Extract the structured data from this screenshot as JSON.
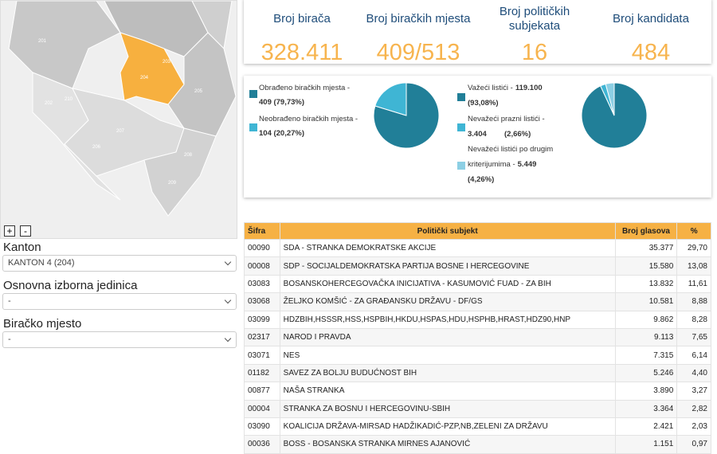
{
  "map": {
    "labels": [
      "201",
      "202",
      "203",
      "204",
      "205",
      "206",
      "207",
      "208",
      "209",
      "210"
    ],
    "zoom_in": "+",
    "zoom_out": "-"
  },
  "filters": [
    {
      "label": "Kanton",
      "selected": "KANTON 4 (204)"
    },
    {
      "label": "Osnovna izborna jedinica",
      "selected": "-"
    },
    {
      "label": "Biračko mjesto",
      "selected": "-"
    }
  ],
  "stats": [
    {
      "title": "Broj birača",
      "value": "328.411"
    },
    {
      "title": "Broj biračkih mjesta",
      "value": "409/513"
    },
    {
      "title": "Broj političkih subjekata",
      "value": "16"
    },
    {
      "title": "Broj kandidata",
      "value": "484"
    }
  ],
  "pie_left": {
    "slices": [
      {
        "label_lines": [
          "Obrađeno biračkih mjesta -"
        ],
        "value_label": "409 (79,73%)",
        "value": 409,
        "color": "#217f98"
      },
      {
        "label_lines": [
          "Neobrađeno biračkih mjesta -"
        ],
        "value_label": "104 (20,27%)",
        "value": 104,
        "color": "#3fb5d4"
      }
    ]
  },
  "pie_right": {
    "slices": [
      {
        "label_lines": [
          "Važeći listići -"
        ],
        "count": "119.100",
        "share": "(93,08%)",
        "value": 119100,
        "color": "#217f98"
      },
      {
        "label_lines": [
          "Nevažeći prazni listići -"
        ],
        "count": "3.404",
        "share": "(2,66%)",
        "value": 3404,
        "color": "#3fb5d4"
      },
      {
        "label_lines": [
          "Nevažeći listići po drugim",
          "kriterijumima -"
        ],
        "count": "5.449",
        "share": "(4,26%)",
        "value": 5449,
        "color": "#8ccfe4"
      }
    ]
  },
  "table": {
    "headers": [
      "Šifra",
      "Politički subjekt",
      "Broj glasova",
      "%"
    ],
    "rows": [
      [
        "00090",
        "SDA - STRANKA DEMOKRATSKE AKCIJE",
        "35.377",
        "29,70"
      ],
      [
        "00008",
        "SDP - SOCIJALDEMOKRATSKA PARTIJA BOSNE I HERCEGOVINE",
        "15.580",
        "13,08"
      ],
      [
        "03083",
        "BOSANSKOHERCEGOVAČKA INICIJATIVA - KASUMOVIĆ FUAD - ZA BIH",
        "13.832",
        "11,61"
      ],
      [
        "03068",
        "ŽELJKO KOMŠIĆ - ZA GRAĐANSKU DRŽAVU - DF/GS",
        "10.581",
        "8,88"
      ],
      [
        "03099",
        "HDZBIH,HSSSR,HSS,HSPBIH,HKDU,HSPAS,HDU,HSPHB,HRAST,HDZ90,HNP",
        "9.862",
        "8,28"
      ],
      [
        "02317",
        "NAROD I PRAVDA",
        "9.113",
        "7,65"
      ],
      [
        "03071",
        "NES",
        "7.315",
        "6,14"
      ],
      [
        "01182",
        "SAVEZ ZA BOLJU BUDUĆNOST BIH",
        "5.246",
        "4,40"
      ],
      [
        "00877",
        "NAŠA STRANKA",
        "3.890",
        "3,27"
      ],
      [
        "00004",
        "STRANKA ZA BOSNU I HERCEGOVINU-SBIH",
        "3.364",
        "2,82"
      ],
      [
        "03090",
        "KOALICIJA DRŽAVA-MIRSAD HADŽIKADIĆ-PZP,NB,ZELENI ZA DRŽAVU",
        "2.421",
        "2,03"
      ],
      [
        "00036",
        "BOSS - BOSANSKA STRANKA MIRNES AJANOVIĆ",
        "1.151",
        "0,97"
      ]
    ]
  }
}
